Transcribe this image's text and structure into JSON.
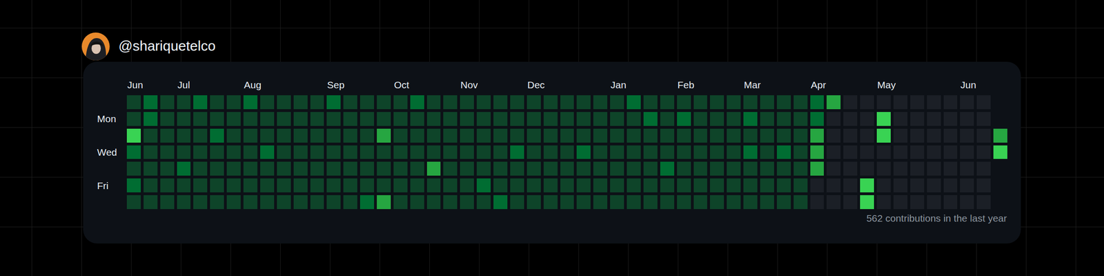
{
  "header": {
    "username": "@shariquetelco"
  },
  "chart_data": {
    "type": "heatmap",
    "categories": [
      "Jun",
      null,
      null,
      "Jul",
      null,
      null,
      null,
      "Aug",
      null,
      null,
      null,
      null,
      "Sep",
      null,
      null,
      null,
      "Oct",
      null,
      null,
      null,
      "Nov",
      null,
      null,
      null,
      "Dec",
      null,
      null,
      null,
      null,
      "Jan",
      null,
      null,
      null,
      "Feb",
      null,
      null,
      null,
      "Mar",
      null,
      null,
      null,
      "Apr",
      null,
      null,
      null,
      "May",
      null,
      null,
      null,
      null,
      "Jun",
      null,
      null
    ],
    "rows": [
      null,
      "Mon",
      null,
      "Wed",
      null,
      "Fri",
      null
    ],
    "cells": [
      [
        1,
        2,
        1,
        1,
        2,
        1,
        1,
        2,
        1,
        1,
        1,
        1,
        2,
        1,
        1,
        1,
        1,
        2,
        1,
        1,
        1,
        1,
        1,
        1,
        1,
        1,
        1,
        1,
        1,
        1,
        2,
        1,
        1,
        1,
        1,
        1,
        1,
        1,
        1,
        1,
        1,
        2,
        3,
        0,
        0,
        0,
        0,
        0,
        0,
        0,
        0,
        0,
        null
      ],
      [
        1,
        2,
        1,
        1,
        1,
        1,
        1,
        1,
        1,
        1,
        1,
        1,
        1,
        1,
        1,
        1,
        1,
        1,
        1,
        1,
        1,
        1,
        1,
        1,
        1,
        1,
        1,
        1,
        1,
        1,
        1,
        2,
        1,
        2,
        1,
        1,
        1,
        2,
        1,
        1,
        1,
        2,
        0,
        0,
        0,
        4,
        0,
        0,
        0,
        0,
        0,
        0,
        null
      ],
      [
        4,
        1,
        1,
        1,
        1,
        2,
        1,
        1,
        1,
        1,
        1,
        1,
        1,
        1,
        1,
        3,
        1,
        1,
        1,
        1,
        1,
        1,
        1,
        1,
        1,
        1,
        1,
        1,
        1,
        1,
        1,
        1,
        1,
        1,
        1,
        1,
        1,
        1,
        1,
        1,
        1,
        3,
        0,
        0,
        0,
        4,
        0,
        0,
        0,
        0,
        0,
        0,
        3
      ],
      [
        2,
        1,
        1,
        1,
        1,
        1,
        1,
        1,
        2,
        1,
        1,
        1,
        1,
        1,
        1,
        1,
        1,
        1,
        1,
        1,
        1,
        1,
        1,
        2,
        1,
        1,
        1,
        2,
        1,
        1,
        1,
        1,
        1,
        1,
        1,
        1,
        1,
        2,
        1,
        2,
        1,
        3,
        0,
        0,
        0,
        0,
        0,
        0,
        0,
        0,
        0,
        0,
        4
      ],
      [
        1,
        1,
        1,
        2,
        1,
        1,
        1,
        1,
        1,
        1,
        1,
        1,
        1,
        1,
        1,
        1,
        1,
        1,
        3,
        1,
        1,
        1,
        1,
        1,
        1,
        1,
        1,
        1,
        1,
        1,
        1,
        1,
        2,
        1,
        1,
        1,
        1,
        1,
        1,
        1,
        1,
        3,
        0,
        0,
        0,
        0,
        0,
        0,
        0,
        0,
        0,
        0,
        null
      ],
      [
        2,
        1,
        1,
        1,
        1,
        1,
        1,
        1,
        1,
        1,
        1,
        1,
        1,
        1,
        1,
        1,
        1,
        1,
        1,
        1,
        1,
        2,
        1,
        1,
        1,
        1,
        1,
        1,
        1,
        1,
        1,
        1,
        1,
        1,
        1,
        1,
        1,
        1,
        1,
        1,
        1,
        0,
        0,
        0,
        4,
        0,
        0,
        0,
        0,
        0,
        0,
        0,
        null
      ],
      [
        1,
        1,
        1,
        1,
        1,
        1,
        1,
        1,
        1,
        1,
        1,
        1,
        1,
        1,
        2,
        3,
        1,
        1,
        1,
        1,
        1,
        1,
        2,
        1,
        1,
        1,
        1,
        1,
        1,
        1,
        1,
        1,
        1,
        1,
        1,
        1,
        1,
        1,
        1,
        1,
        1,
        0,
        0,
        0,
        4,
        0,
        0,
        0,
        0,
        0,
        0,
        0,
        null
      ]
    ],
    "colors": [
      "#1b1f26",
      "#0e4429",
      "#006d32",
      "#26a641",
      "#39d353"
    ],
    "zlim": [
      0,
      4
    ]
  },
  "footer": {
    "text": "562 contributions in the last year"
  }
}
